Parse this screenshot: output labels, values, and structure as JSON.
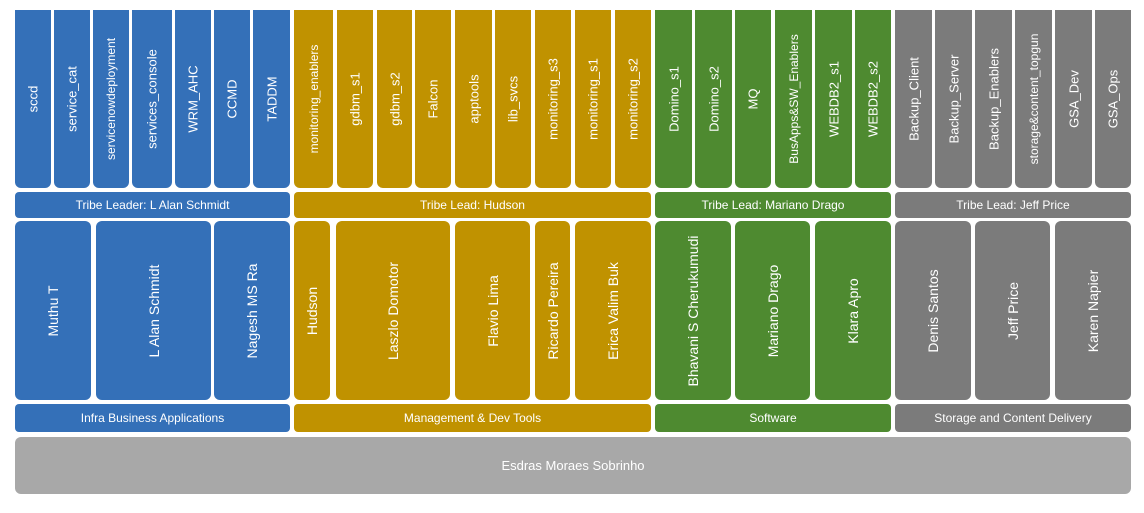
{
  "colors": {
    "infra": "#3470b8",
    "mgmt": "#c09200",
    "software": "#4e8a30",
    "storage": "#7b7b7b",
    "base": "#a8a8a8"
  },
  "tribes": [
    {
      "key": "infra",
      "leader_label": "Tribe Leader: L Alan Schmidt",
      "department": "Infra Business Applications",
      "squads": [
        "sccd",
        "service_cat",
        "servicenowdeployment",
        "services_console",
        "WRM_AHC",
        "CCMD",
        "TADDM"
      ],
      "members": [
        "Muthu T",
        "L Alan Schmidt",
        "Nagesh MS Ra"
      ]
    },
    {
      "key": "mgmt",
      "leader_label": "Tribe Lead: Hudson",
      "department": "Management & Dev Tools",
      "squads": [
        "monitoring_enablers",
        "gdbm_s1",
        "gdbm_s2",
        "Falcon",
        "apptools",
        "lib_svcs",
        "monitoring_s3",
        "monitoring_s1",
        "monitoring_s2"
      ],
      "members": [
        "Hudson",
        "Laszlo Domotor",
        "Flavio Lima",
        "Ricardo Pereira",
        "Erica Valim Buk"
      ]
    },
    {
      "key": "software",
      "leader_label": "Tribe Lead: Mariano Drago",
      "department": "Software",
      "squads": [
        "Domino_s1",
        "Domino_s2",
        "MQ",
        "BusApps&SW_Enablers",
        "WEBDB2_s1",
        "WEBDB2_s2"
      ],
      "members": [
        "Bhavani S Cherukumudi",
        "Mariano Drago",
        "Klara Apro"
      ]
    },
    {
      "key": "storage",
      "leader_label": "Tribe Lead: Jeff Price",
      "department": "Storage and Content Delivery",
      "squads": [
        "Backup_Client",
        "Backup_Server",
        "Backup_Enablers",
        "storage&content_topgun",
        "GSA_Dev",
        "GSA_Ops"
      ],
      "members": [
        "Denis Santos",
        "Jeff Price",
        "Karen Napier"
      ]
    }
  ],
  "footer": {
    "name": "Esdras Moraes Sobrinho"
  }
}
